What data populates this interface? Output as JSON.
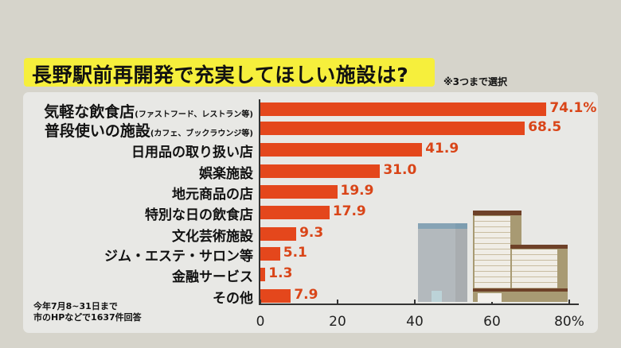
{
  "title": "長野駅前再開発で充実してほしい施設は?",
  "note": "※3つまで選択",
  "source": [
    "今年7月8~31日まで",
    "市のHPなどで1637件回答"
  ],
  "colors": {
    "bar": "#e4471c",
    "value_text": "#d94518",
    "title_bg": "#f6ef3c"
  },
  "chart_data": {
    "type": "bar",
    "orientation": "horizontal",
    "categories": [
      {
        "main": "気軽な飲食店",
        "sub": "(ファストフード、レストラン等)"
      },
      {
        "main": "普段使いの施設",
        "sub": "(カフェ、ブックラウンジ等)"
      },
      {
        "main": "日用品の取り扱い店",
        "sub": ""
      },
      {
        "main": "娯楽施設",
        "sub": ""
      },
      {
        "main": "地元商品の店",
        "sub": ""
      },
      {
        "main": "特別な日の飲食店",
        "sub": ""
      },
      {
        "main": "文化芸術施設",
        "sub": ""
      },
      {
        "main": "ジム・エステ・サロン等",
        "sub": ""
      },
      {
        "main": "金融サービス",
        "sub": ""
      },
      {
        "main": "その他",
        "sub": ""
      }
    ],
    "values": [
      74.1,
      68.5,
      41.9,
      31.0,
      19.9,
      17.9,
      9.3,
      5.1,
      1.3,
      7.9
    ],
    "value_labels": [
      "74.1%",
      "68.5",
      "41.9",
      "31.0",
      "19.9",
      "17.9",
      "9.3",
      "5.1",
      "1.3",
      "7.9"
    ],
    "xlim": [
      0,
      80
    ],
    "ticks": [
      "0",
      "20",
      "40",
      "60",
      "80%"
    ],
    "grid": false
  }
}
